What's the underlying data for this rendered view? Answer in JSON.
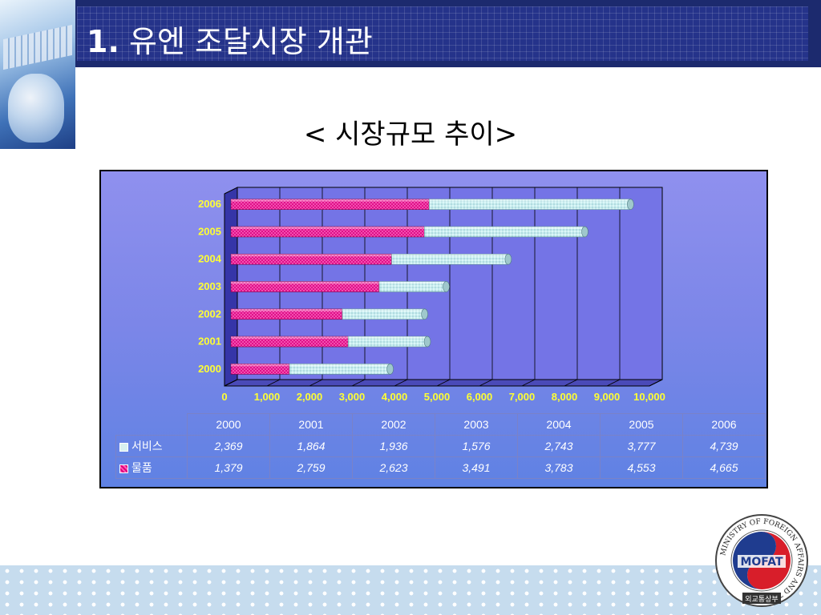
{
  "header": {
    "title_number": "1.",
    "title_text": "유엔 조달시장 개관"
  },
  "subtitle": "< 시장규모 추이>",
  "chart_data": {
    "type": "bar",
    "orientation": "horizontal",
    "stacked": true,
    "categories": [
      "2000",
      "2001",
      "2002",
      "2003",
      "2004",
      "2005",
      "2006"
    ],
    "series": [
      {
        "name": "물품",
        "values": [
          1379,
          2759,
          2623,
          3491,
          3783,
          4553,
          4665
        ]
      },
      {
        "name": "서비스",
        "values": [
          2369,
          1864,
          1936,
          1576,
          2743,
          3777,
          4739
        ]
      }
    ],
    "xlim": [
      0,
      10000
    ],
    "x_ticks": [
      "0",
      "1,000",
      "2,000",
      "3,000",
      "4,000",
      "5,000",
      "6,000",
      "7,000",
      "8,000",
      "9,000",
      "10,000"
    ],
    "grid": true,
    "colors": {
      "물품": "#e21d8f",
      "서비스": "#cfeff0"
    }
  },
  "data_table": {
    "years": [
      "2000",
      "2001",
      "2002",
      "2003",
      "2004",
      "2005",
      "2006"
    ],
    "rows": [
      {
        "label": "서비스",
        "values": [
          "2,369",
          "1,864",
          "1,936",
          "1,576",
          "2,743",
          "3,777",
          "4,739"
        ]
      },
      {
        "label": "물품",
        "values": [
          "1,379",
          "2,759",
          "2,623",
          "3,491",
          "3,783",
          "4,553",
          "4,665"
        ]
      }
    ]
  },
  "logo": {
    "ring_text": "MINISTRY OF FOREIGN AFFAIRS AND TRADE",
    "name": "MOFAT",
    "korean": "외교통상부"
  }
}
